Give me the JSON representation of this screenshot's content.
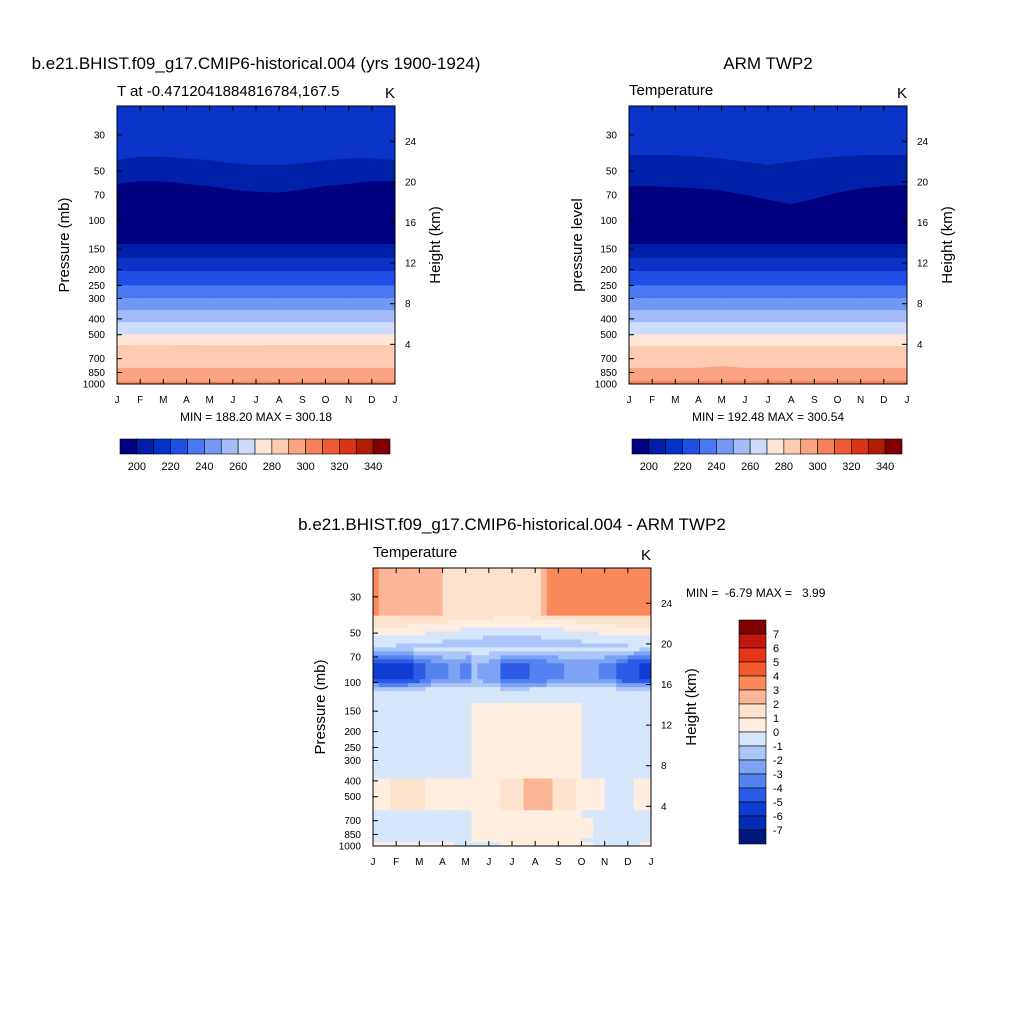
{
  "chart_data": [
    {
      "type": "heatmap",
      "title": "b.e21.BHIST.f09_g17.CMIP6-historical.004 (yrs 1900-1924)",
      "subtitle_left": "T at -0.4712041884816784,167.5",
      "subtitle_right": "K",
      "ylabel": "Pressure (mb)",
      "ylabel_right": "Height (km)",
      "x_ticks": [
        "J",
        "F",
        "M",
        "A",
        "M",
        "J",
        "J",
        "A",
        "S",
        "O",
        "N",
        "D",
        "J"
      ],
      "y_ticks": [
        30,
        50,
        70,
        100,
        150,
        200,
        250,
        300,
        400,
        500,
        700,
        850,
        1000
      ],
      "y_ticks_right": [
        24,
        20,
        16,
        12,
        8,
        4
      ],
      "ylim": [
        1000,
        20
      ],
      "y_scale": "log",
      "stats": "MIN = 188.20 MAX = 300.18",
      "colorbar_labels": [
        "200",
        "220",
        "240",
        "260",
        "280",
        "300",
        "320",
        "340"
      ],
      "contour_levels_K": [
        190,
        200,
        210,
        220,
        230,
        240,
        250,
        260,
        270,
        280,
        290,
        300,
        310,
        320,
        330,
        340
      ],
      "band_boundaries_mb": [
        {
          "level_K": "top",
          "mb": [
            20,
            20,
            20,
            20,
            20,
            20,
            20,
            20,
            20,
            20,
            20,
            20,
            20
          ]
        },
        {
          "level_K": 210,
          "mb": [
            43,
            41,
            41,
            42,
            43,
            45,
            46,
            46,
            45,
            43,
            42,
            42,
            43
          ]
        },
        {
          "level_K": 200,
          "mb": [
            60,
            58,
            58,
            60,
            62,
            65,
            67,
            68,
            65,
            62,
            60,
            58,
            58
          ]
        },
        {
          "level_K": 190,
          "mb": [
            140,
            140,
            140,
            140,
            140,
            140,
            140,
            140,
            140,
            140,
            140,
            140,
            140
          ]
        },
        {
          "level_K": 200,
          "mb": [
            170,
            170,
            170,
            170,
            170,
            170,
            170,
            170,
            170,
            170,
            170,
            170,
            170
          ]
        },
        {
          "level_K": 210,
          "mb": [
            205,
            205,
            205,
            205,
            205,
            205,
            205,
            205,
            205,
            205,
            205,
            205,
            205
          ]
        },
        {
          "level_K": 220,
          "mb": [
            250,
            250,
            250,
            250,
            250,
            250,
            250,
            250,
            250,
            250,
            250,
            250,
            250
          ]
        },
        {
          "level_K": 230,
          "mb": [
            300,
            300,
            300,
            300,
            300,
            300,
            300,
            300,
            300,
            300,
            300,
            300,
            300
          ]
        },
        {
          "level_K": 240,
          "mb": [
            355,
            355,
            355,
            355,
            355,
            355,
            355,
            355,
            355,
            355,
            355,
            355,
            355
          ]
        },
        {
          "level_K": 250,
          "mb": [
            420,
            420,
            420,
            420,
            420,
            420,
            420,
            420,
            420,
            420,
            420,
            420,
            420
          ]
        },
        {
          "level_K": 260,
          "mb": [
            500,
            500,
            500,
            500,
            500,
            500,
            500,
            500,
            500,
            500,
            500,
            500,
            500
          ]
        },
        {
          "level_K": 270,
          "mb": [
            580,
            578,
            578,
            580,
            582,
            582,
            582,
            580,
            580,
            580,
            580,
            580,
            580
          ]
        },
        {
          "level_K": 280,
          "mb": [
            800,
            800,
            800,
            800,
            800,
            800,
            800,
            800,
            800,
            800,
            800,
            800,
            800
          ]
        },
        {
          "level_K": 290,
          "mb": [
            970,
            970,
            970,
            970,
            970,
            970,
            970,
            970,
            970,
            970,
            970,
            970,
            970
          ]
        },
        {
          "level_K": 300,
          "mb": [
            1000,
            1000,
            1000,
            1000,
            1000,
            1000,
            1000,
            1000,
            1000,
            1000,
            1000,
            1000,
            1000
          ]
        }
      ]
    },
    {
      "type": "heatmap",
      "title": "ARM TWP2",
      "subtitle_left": "Temperature",
      "subtitle_right": "K",
      "ylabel": "pressure level",
      "ylabel_right": "Height (km)",
      "x_ticks": [
        "J",
        "F",
        "M",
        "A",
        "M",
        "J",
        "J",
        "A",
        "S",
        "O",
        "N",
        "D",
        "J"
      ],
      "y_ticks": [
        30,
        50,
        70,
        100,
        150,
        200,
        250,
        300,
        400,
        500,
        700,
        850,
        1000
      ],
      "y_ticks_right": [
        24,
        20,
        16,
        12,
        8,
        4
      ],
      "ylim": [
        1000,
        20
      ],
      "y_scale": "log",
      "stats": "MIN = 192.48 MAX = 300.54",
      "colorbar_labels": [
        "200",
        "220",
        "240",
        "260",
        "280",
        "300",
        "320",
        "340"
      ],
      "band_boundaries_mb": [
        {
          "level_K": "top",
          "mb": [
            20,
            20,
            20,
            20,
            20,
            20,
            20,
            20,
            20,
            20,
            20,
            20,
            20
          ]
        },
        {
          "level_K": 210,
          "mb": [
            40,
            40,
            40,
            41,
            42,
            44,
            46,
            44,
            42,
            41,
            40,
            40,
            40
          ]
        },
        {
          "level_K": 200,
          "mb": [
            62,
            62,
            63,
            64,
            66,
            70,
            75,
            80,
            74,
            68,
            64,
            62,
            61
          ]
        },
        {
          "level_K": 190,
          "mb": [
            140,
            140,
            140,
            140,
            140,
            140,
            140,
            140,
            140,
            140,
            140,
            140,
            140
          ]
        },
        {
          "level_K": 200,
          "mb": [
            170,
            170,
            170,
            170,
            170,
            170,
            170,
            170,
            170,
            170,
            170,
            170,
            170
          ]
        },
        {
          "level_K": 210,
          "mb": [
            205,
            205,
            205,
            205,
            205,
            205,
            205,
            205,
            205,
            205,
            205,
            205,
            205
          ]
        },
        {
          "level_K": 220,
          "mb": [
            250,
            250,
            250,
            250,
            250,
            250,
            250,
            250,
            250,
            250,
            250,
            250,
            250
          ]
        },
        {
          "level_K": 230,
          "mb": [
            300,
            300,
            300,
            300,
            300,
            300,
            300,
            300,
            300,
            300,
            300,
            300,
            300
          ]
        },
        {
          "level_K": 240,
          "mb": [
            355,
            355,
            355,
            355,
            355,
            355,
            355,
            355,
            355,
            355,
            355,
            355,
            355
          ]
        },
        {
          "level_K": 250,
          "mb": [
            420,
            420,
            420,
            420,
            420,
            420,
            420,
            420,
            420,
            420,
            420,
            420,
            420
          ]
        },
        {
          "level_K": 260,
          "mb": [
            500,
            500,
            500,
            500,
            500,
            500,
            500,
            500,
            500,
            500,
            500,
            500,
            500
          ]
        },
        {
          "level_K": 270,
          "mb": [
            590,
            590,
            590,
            590,
            590,
            590,
            590,
            590,
            590,
            590,
            590,
            590,
            590
          ]
        },
        {
          "level_K": 280,
          "mb": [
            800,
            800,
            800,
            800,
            780,
            800,
            800,
            800,
            800,
            800,
            800,
            800,
            800
          ]
        },
        {
          "level_K": 290,
          "mb": [
            960,
            960,
            960,
            960,
            960,
            960,
            960,
            960,
            960,
            960,
            960,
            960,
            960
          ]
        },
        {
          "level_K": 300,
          "mb": [
            1000,
            1000,
            1000,
            1000,
            1000,
            1000,
            1000,
            1000,
            1000,
            1000,
            1000,
            1000,
            1000
          ]
        }
      ]
    },
    {
      "type": "heatmap",
      "title": "b.e21.BHIST.f09_g17.CMIP6-historical.004 - ARM TWP2",
      "subtitle_left": "Temperature",
      "subtitle_right": "K",
      "ylabel": "Pressure (mb)",
      "ylabel_right": "Height (km)",
      "x_ticks": [
        "J",
        "F",
        "M",
        "A",
        "M",
        "J",
        "J",
        "A",
        "S",
        "O",
        "N",
        "D",
        "J"
      ],
      "y_ticks": [
        30,
        50,
        70,
        100,
        150,
        200,
        250,
        300,
        400,
        500,
        700,
        850,
        1000
      ],
      "y_ticks_right": [
        24,
        20,
        16,
        12,
        8,
        4
      ],
      "ylim": [
        1000,
        20
      ],
      "y_scale": "log",
      "stats": "MIN =  -6.79 MAX =   3.99",
      "colorbar_labels": [
        "7",
        "6",
        "5",
        "4",
        "3",
        "2",
        "1",
        "0",
        "-1",
        "-2",
        "-3",
        "-4",
        "-5",
        "-6",
        "-7"
      ],
      "contour_levels_K": [
        7,
        6,
        5,
        4,
        3,
        2,
        1,
        0,
        -1,
        -2,
        -3,
        -4,
        -5,
        -6,
        -7
      ]
    }
  ],
  "palettes": {
    "absolute": [
      "#000080",
      "#001fa6",
      "#0033c8",
      "#1f4fe6",
      "#4978f2",
      "#7399f5",
      "#a3bcf8",
      "#cddcfa",
      "#ffe6d6",
      "#fdcbb1",
      "#fba482",
      "#f6825c",
      "#ef5b34",
      "#d93516",
      "#b01c08",
      "#800000"
    ],
    "band_colors_top_down": [
      "#0a34c8",
      "#0020a8",
      "#000080",
      "#0020a8",
      "#0a34c8",
      "#1f4fe6",
      "#4978f2",
      "#7399f5",
      "#a3bcf8",
      "#cddcfa",
      "#ffe6d6",
      "#fdcbb1",
      "#fba482",
      "#f6825c"
    ],
    "difference": [
      "#800000",
      "#c0180c",
      "#e83416",
      "#f45a2e",
      "#f9895a",
      "#fcb596",
      "#fde2cc",
      "#ffeee0",
      "#d6e6fb",
      "#abc6f8",
      "#7fa3f4",
      "#5482ee",
      "#2b5ae6",
      "#0f3dd2",
      "#002cb5",
      "#00197f"
    ]
  }
}
